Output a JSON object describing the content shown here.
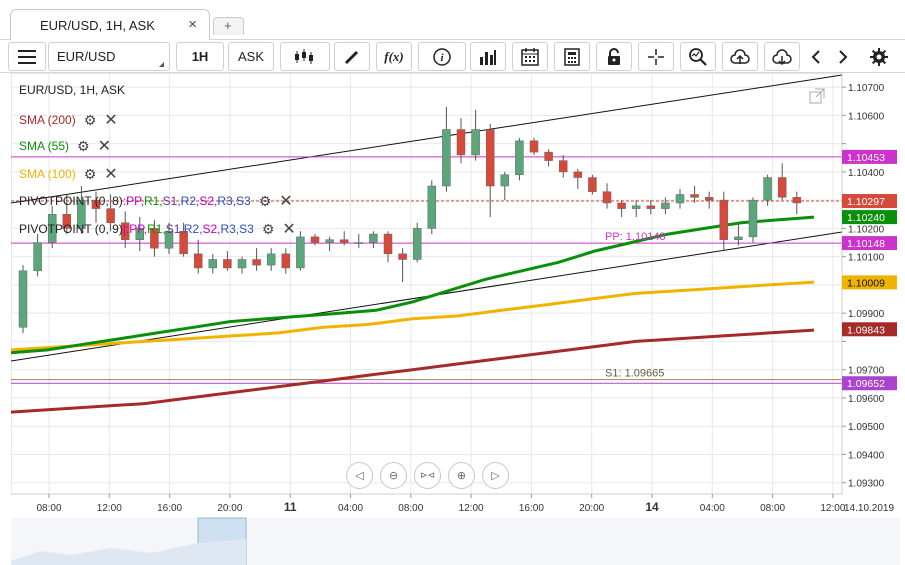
{
  "tabs": [
    {
      "label": "EUR/USD, 1H, ASK",
      "close": "×"
    }
  ],
  "add_tab": "+",
  "toolbar": {
    "menu_icon": "hamburger-icon",
    "symbol": "EUR/USD",
    "timeframe": "1H",
    "side": "ASK",
    "fx_label": "f(x)",
    "info_label": "i"
  },
  "chart": {
    "title": "EUR/USD, 1H, ASK",
    "indicators": [
      {
        "label": "SMA (200)",
        "color": "#a52a2a"
      },
      {
        "label": "SMA (55)",
        "color": "#0a8f0a"
      },
      {
        "label": "SMA (100)",
        "color": "#f0b400"
      }
    ],
    "pivots": [
      {
        "prefix": "PIVOTPOINT (0, 8)",
        "sep": ":",
        "levels": [
          "PP",
          "R1",
          "S1",
          "R2",
          "S2",
          "R3",
          "S3"
        ]
      },
      {
        "prefix": "PIVOTPOINT (0, 9)",
        "sep": "|:",
        "levels": [
          "PP",
          "R1",
          "S1",
          "R2",
          "S2",
          "R3",
          "S3"
        ]
      }
    ],
    "pivot_colors": [
      "#c000c0",
      "#0a8f0a",
      "#7030a0",
      "#3050c0",
      "#c000c0",
      "#3050c0",
      "#3050c0"
    ],
    "pp_label": "PP: 1.10148",
    "s1_label": "S1: 1.09665",
    "date_label": "14.10.2019",
    "colors": {
      "up": "#5ba67a",
      "down": "#d64a3b",
      "grid": "#e8e8e8",
      "sma200": "#a52a2a",
      "sma55": "#0a8f0a",
      "sma100": "#f0b400",
      "magenta": "#cc33cc",
      "purple": "#aa44cc"
    },
    "nav_buttons": [
      "◁",
      "⊖",
      "⊳⊲",
      "⊕",
      "▷"
    ]
  },
  "chart_data": {
    "type": "candlestick",
    "symbol": "EUR/USD",
    "timeframe": "1H",
    "price_axis_ticks": [
      1.107,
      1.106,
      1.105,
      1.104,
      1.103,
      1.102,
      1.101,
      1.1,
      1.099,
      1.098,
      1.097,
      1.096,
      1.095,
      1.094,
      1.093
    ],
    "price_axis_labels": [
      "1.10700",
      "1.10600",
      "",
      "1.10400",
      "",
      "1.10200",
      "1.10100",
      "",
      "1.09900",
      "",
      "1.09700",
      "1.09600",
      "1.09500",
      "1.09400",
      "1.09300"
    ],
    "ylim": [
      1.0926,
      1.1075
    ],
    "time_axis_labels": [
      {
        "label": "08:00",
        "bold": false
      },
      {
        "label": "12:00",
        "bold": false
      },
      {
        "label": "16:00",
        "bold": false
      },
      {
        "label": "20:00",
        "bold": false
      },
      {
        "label": "11",
        "bold": true
      },
      {
        "label": "04:00",
        "bold": false
      },
      {
        "label": "08:00",
        "bold": false
      },
      {
        "label": "12:00",
        "bold": false
      },
      {
        "label": "16:00",
        "bold": false
      },
      {
        "label": "20:00",
        "bold": false
      },
      {
        "label": "14",
        "bold": true
      },
      {
        "label": "04:00",
        "bold": false
      },
      {
        "label": "08:00",
        "bold": false
      },
      {
        "label": "12:00",
        "bold": false
      }
    ],
    "price_tags": [
      {
        "label": "1.10453",
        "value": 1.10453,
        "color": "#cc33cc"
      },
      {
        "label": "1.10297",
        "value": 1.10297,
        "color": "#d64a3b"
      },
      {
        "label": "1.10240",
        "value": 1.1024,
        "color": "#0a8f0a"
      },
      {
        "label": "1.10148",
        "value": 1.10148,
        "color": "#cc33cc"
      },
      {
        "label": "1.10009",
        "value": 1.10009,
        "color": "#f0b400"
      },
      {
        "label": "1.09843",
        "value": 1.09843,
        "color": "#a52a2a"
      },
      {
        "label": "1.09652",
        "value": 1.09652,
        "color": "#aa44cc"
      }
    ],
    "horizontal_lines": [
      {
        "value": 1.10453,
        "color": "#cc33cc"
      },
      {
        "value": 1.10148,
        "color": "#cc33cc"
      },
      {
        "value": 1.09652,
        "color": "#aa44cc"
      },
      {
        "value": 1.09665,
        "color": "#a08060"
      },
      {
        "value": 1.10297,
        "color": "#d64a3b",
        "dashed": true
      }
    ],
    "candles": [
      [
        1.0985,
        1.1007,
        1.0983,
        1.1005
      ],
      [
        1.1005,
        1.1018,
        1.1003,
        1.1015
      ],
      [
        1.1015,
        1.1028,
        1.1013,
        1.1025
      ],
      [
        1.1025,
        1.1032,
        1.1018,
        1.102
      ],
      [
        1.102,
        1.1035,
        1.1018,
        1.103
      ],
      [
        1.103,
        1.1033,
        1.1022,
        1.1027
      ],
      [
        1.1027,
        1.1032,
        1.1019,
        1.1022
      ],
      [
        1.1022,
        1.1026,
        1.1013,
        1.1016
      ],
      [
        1.1016,
        1.1024,
        1.1012,
        1.102
      ],
      [
        1.102,
        1.1023,
        1.101,
        1.1013
      ],
      [
        1.1013,
        1.1022,
        1.1011,
        1.1019
      ],
      [
        1.1019,
        1.1022,
        1.101,
        1.1011
      ],
      [
        1.1011,
        1.1016,
        1.1004,
        1.1006
      ],
      [
        1.1006,
        1.1011,
        1.1004,
        1.1009
      ],
      [
        1.1009,
        1.1012,
        1.1005,
        1.1006
      ],
      [
        1.1006,
        1.101,
        1.1004,
        1.1009
      ],
      [
        1.1009,
        1.1013,
        1.1005,
        1.1007
      ],
      [
        1.1007,
        1.1013,
        1.1005,
        1.1011
      ],
      [
        1.1011,
        1.1013,
        1.1004,
        1.1006
      ],
      [
        1.1006,
        1.1019,
        1.1005,
        1.1017
      ],
      [
        1.1017,
        1.1018,
        1.1014,
        1.1015
      ],
      [
        1.1015,
        1.1017,
        1.1012,
        1.1016
      ],
      [
        1.1016,
        1.1019,
        1.1014,
        1.1015
      ],
      [
        1.1015,
        1.1018,
        1.1013,
        1.1015
      ],
      [
        1.1015,
        1.1019,
        1.1013,
        1.1018
      ],
      [
        1.1018,
        1.1019,
        1.1008,
        1.1011
      ],
      [
        1.1011,
        1.1013,
        1.1001,
        1.1009
      ],
      [
        1.1009,
        1.1022,
        1.1008,
        1.102
      ],
      [
        1.102,
        1.1037,
        1.1018,
        1.1035
      ],
      [
        1.1035,
        1.1063,
        1.1033,
        1.1055
      ],
      [
        1.1055,
        1.1059,
        1.1043,
        1.1046
      ],
      [
        1.1046,
        1.1062,
        1.1044,
        1.1055
      ],
      [
        1.1055,
        1.1057,
        1.1024,
        1.1035
      ],
      [
        1.1035,
        1.104,
        1.103,
        1.1039
      ],
      [
        1.1039,
        1.1052,
        1.1037,
        1.1051
      ],
      [
        1.1051,
        1.1052,
        1.1046,
        1.1047
      ],
      [
        1.1047,
        1.1048,
        1.1042,
        1.1044
      ],
      [
        1.1044,
        1.1046,
        1.1038,
        1.104
      ],
      [
        1.104,
        1.1041,
        1.1034,
        1.1038
      ],
      [
        1.1038,
        1.1039,
        1.1032,
        1.1033
      ],
      [
        1.1033,
        1.1036,
        1.1027,
        1.1029
      ],
      [
        1.1029,
        1.103,
        1.1024,
        1.1027
      ],
      [
        1.1027,
        1.103,
        1.1024,
        1.1028
      ],
      [
        1.1028,
        1.103,
        1.1025,
        1.1027
      ],
      [
        1.1027,
        1.1031,
        1.1025,
        1.1029
      ],
      [
        1.1029,
        1.1034,
        1.1027,
        1.1032
      ],
      [
        1.1032,
        1.1035,
        1.1029,
        1.1031
      ],
      [
        1.1031,
        1.1033,
        1.1027,
        1.103
      ],
      [
        1.103,
        1.1033,
        1.1012,
        1.1016
      ],
      [
        1.1016,
        1.1022,
        1.1014,
        1.1017
      ],
      [
        1.1017,
        1.1031,
        1.1015,
        1.103
      ],
      [
        1.103,
        1.1039,
        1.1028,
        1.1038
      ],
      [
        1.1038,
        1.1043,
        1.103,
        1.1031
      ],
      [
        1.1031,
        1.1033,
        1.1025,
        1.1029
      ]
    ],
    "sma55": [
      1.0976,
      1.0977,
      1.0979,
      1.0981,
      1.0983,
      1.0985,
      1.0987,
      1.0988,
      1.0989,
      1.099,
      1.0991,
      1.0994,
      1.0998,
      1.1002,
      1.1005,
      1.1008,
      1.1012,
      1.1015,
      1.1018,
      1.102,
      1.1022,
      1.1023,
      1.1024
    ],
    "sma100": [
      1.0977,
      1.0978,
      1.0979,
      1.098,
      1.0981,
      1.0982,
      1.0983,
      1.0985,
      1.0986,
      1.0988,
      1.0989,
      1.0991,
      1.0993,
      1.0995,
      1.0997,
      1.0998,
      1.0999,
      1.1,
      1.1001
    ],
    "sma200": [
      1.0955,
      1.0956,
      1.0957,
      1.0958,
      1.096,
      1.0962,
      1.0964,
      1.0966,
      1.0968,
      1.097,
      1.0972,
      1.0974,
      1.0976,
      1.0978,
      1.098,
      1.0981,
      1.0982,
      1.0983,
      1.0984
    ],
    "grid": true
  }
}
